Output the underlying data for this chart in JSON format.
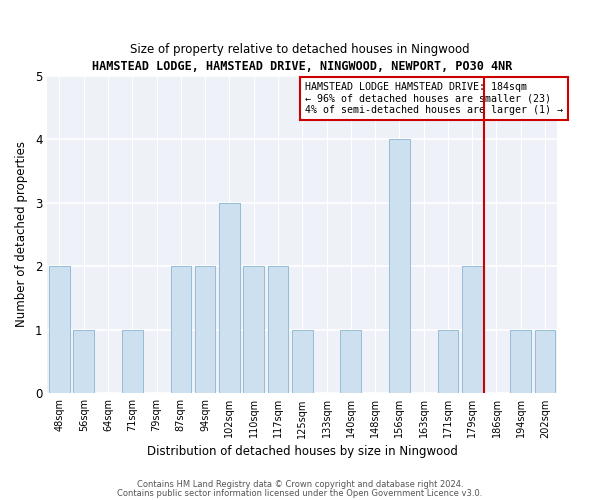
{
  "title": "HAMSTEAD LODGE, HAMSTEAD DRIVE, NINGWOOD, NEWPORT, PO30 4NR",
  "subtitle": "Size of property relative to detached houses in Ningwood",
  "xlabel": "Distribution of detached houses by size in Ningwood",
  "ylabel": "Number of detached properties",
  "categories": [
    "48sqm",
    "56sqm",
    "64sqm",
    "71sqm",
    "79sqm",
    "87sqm",
    "94sqm",
    "102sqm",
    "110sqm",
    "117sqm",
    "125sqm",
    "133sqm",
    "140sqm",
    "148sqm",
    "156sqm",
    "163sqm",
    "171sqm",
    "179sqm",
    "186sqm",
    "194sqm",
    "202sqm"
  ],
  "values": [
    2,
    1,
    0,
    1,
    0,
    2,
    2,
    3,
    2,
    2,
    1,
    0,
    1,
    0,
    4,
    0,
    1,
    2,
    0,
    1,
    1
  ],
  "bar_color": "#cce0f0",
  "bar_edgecolor": "#8ab4d0",
  "marker_color": "#cc0000",
  "ylim": [
    0,
    5
  ],
  "yticks": [
    0,
    1,
    2,
    3,
    4,
    5
  ],
  "annotation_lines": [
    "HAMSTEAD LODGE HAMSTEAD DRIVE: 184sqm",
    "← 96% of detached houses are smaller (23)",
    "4% of semi-detached houses are larger (1) →"
  ],
  "annotation_box_color": "#cc0000",
  "bg_color": "#eef2f8",
  "footer_line1": "Contains HM Land Registry data © Crown copyright and database right 2024.",
  "footer_line2": "Contains public sector information licensed under the Open Government Licence v3.0."
}
